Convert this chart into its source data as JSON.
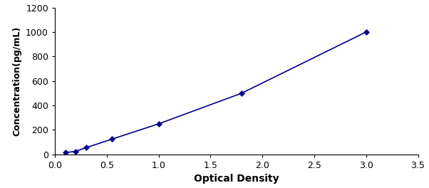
{
  "x_points": [
    0.1,
    0.2,
    0.3,
    0.55,
    1.0,
    1.8,
    3.0
  ],
  "y_points": [
    15,
    25,
    55,
    125,
    250,
    500,
    1000
  ],
  "line_color": "#00008B",
  "marker_color": "#00008B",
  "xlabel": "Optical Density",
  "ylabel": "Concentration(pg/mL)",
  "xlim": [
    0,
    3.5
  ],
  "ylim": [
    0,
    1200
  ],
  "xticks": [
    0,
    0.5,
    1.0,
    1.5,
    2.0,
    2.5,
    3.0,
    3.5
  ],
  "yticks": [
    0,
    200,
    400,
    600,
    800,
    1000,
    1200
  ],
  "xlabel_fontsize": 10,
  "ylabel_fontsize": 9,
  "tick_fontsize": 9,
  "marker_size": 4,
  "line_width": 1.2,
  "background_color": "#ffffff"
}
